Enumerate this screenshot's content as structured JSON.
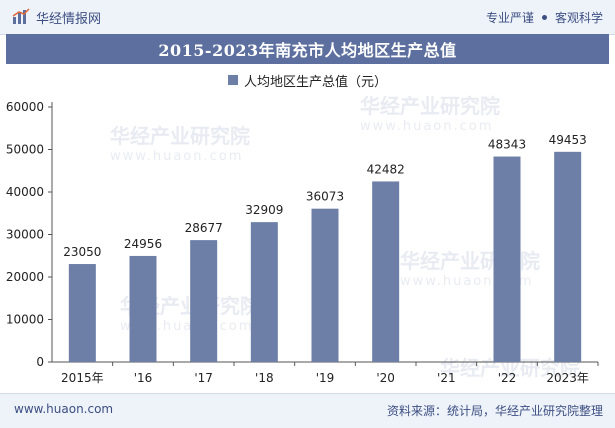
{
  "header": {
    "brand": "华经情报网",
    "slogan_left": "专业严谨",
    "slogan_right": "客观科学"
  },
  "watermark": {
    "text": "华经产业研究院",
    "url": "www.huaon.com"
  },
  "footer": {
    "website": "www.huaon.com",
    "source": "资料来源：统计局，华经产业研究院整理"
  },
  "chart_data": {
    "type": "bar",
    "title": "2015-2023年南充市人均地区生产总值",
    "legend": [
      "人均地区生产总值（元）"
    ],
    "categories": [
      "2015年",
      "'16",
      "'17",
      "'18",
      "'19",
      "'20",
      "'21",
      "'22",
      "2023年"
    ],
    "values": [
      23050,
      24956,
      28677,
      32909,
      36073,
      42482,
      null,
      48343,
      49453
    ],
    "data_labels": [
      "23050",
      "24956",
      "28677",
      "32909",
      "36073",
      "42482",
      "",
      "48343",
      "49453"
    ],
    "ylim": [
      0,
      60000
    ],
    "yticks": [
      0,
      10000,
      20000,
      30000,
      40000,
      50000,
      60000
    ],
    "ytick_labels": [
      "0",
      "10000",
      "20000",
      "30000",
      "40000",
      "50000",
      "60000"
    ],
    "xlabel": "",
    "ylabel": "",
    "grid": false,
    "colors": {
      "bar": "#6d7ea7",
      "axis": "#555555",
      "text": "#222222"
    }
  }
}
